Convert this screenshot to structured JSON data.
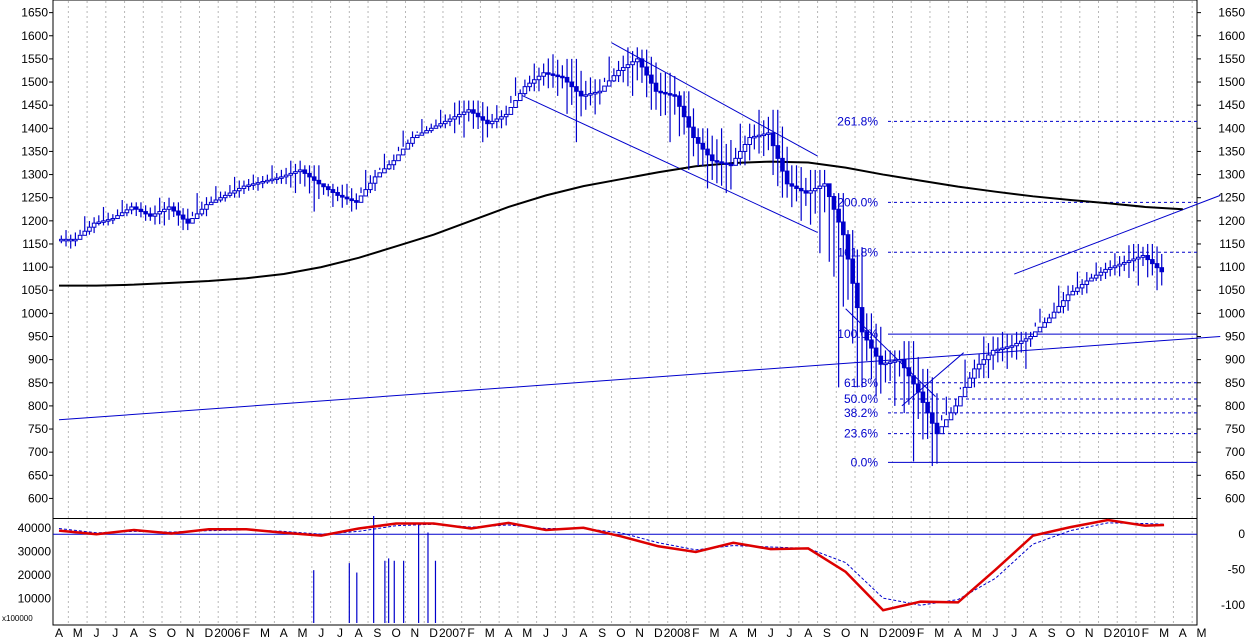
{
  "chart_data": [
    {
      "type": "ohlc",
      "title": "",
      "ylim": [
        575,
        1660
      ],
      "yticks": [
        600,
        650,
        700,
        750,
        800,
        850,
        900,
        950,
        1000,
        1050,
        1100,
        1150,
        1200,
        1250,
        1300,
        1350,
        1400,
        1450,
        1500,
        1550,
        1600,
        1650
      ],
      "x_labels": [
        "A",
        "M",
        "J",
        "J",
        "A",
        "S",
        "O",
        "N",
        "D",
        "2006",
        "F",
        "M",
        "A",
        "M",
        "J",
        "J",
        "A",
        "S",
        "O",
        "N",
        "D",
        "2007",
        "F",
        "M",
        "A",
        "M",
        "J",
        "J",
        "A",
        "S",
        "O",
        "N",
        "D",
        "2008",
        "F",
        "M",
        "A",
        "M",
        "J",
        "J",
        "A",
        "S",
        "O",
        "N",
        "D",
        "2009",
        "F",
        "M",
        "A",
        "M",
        "J",
        "J",
        "A",
        "S",
        "O",
        "N",
        "D",
        "2010",
        "F",
        "M",
        "A",
        "M"
      ],
      "x_range_months": [
        0,
        62
      ],
      "price_series": {
        "name": "",
        "color": "#0000cc",
        "months": [
          0,
          1,
          2,
          3,
          4,
          5,
          6,
          7,
          8,
          9,
          10,
          11,
          12,
          13,
          14,
          15,
          16,
          17,
          18,
          19,
          20,
          21,
          22,
          23,
          24,
          25,
          26,
          27,
          28,
          29,
          30,
          31,
          32,
          33,
          34,
          35,
          36,
          37,
          38,
          39,
          40,
          41,
          42,
          43,
          44,
          45,
          46,
          47,
          48,
          49,
          50,
          51,
          52,
          53,
          54,
          55,
          56,
          57,
          58
        ],
        "close": [
          1160,
          1195,
          1205,
          1230,
          1210,
          1230,
          1195,
          1235,
          1255,
          1275,
          1285,
          1295,
          1310,
          1280,
          1255,
          1240,
          1295,
          1330,
          1380,
          1400,
          1420,
          1440,
          1410,
          1430,
          1490,
          1520,
          1510,
          1470,
          1480,
          1525,
          1550,
          1480,
          1470,
          1380,
          1330,
          1320,
          1380,
          1390,
          1280,
          1260,
          1280,
          1170,
          960,
          890,
          900,
          830,
          740,
          800,
          880,
          920,
          930,
          950,
          990,
          1040,
          1070,
          1095,
          1110,
          1125,
          1090
        ],
        "high": [
          1180,
          1210,
          1230,
          1245,
          1240,
          1250,
          1240,
          1260,
          1275,
          1295,
          1300,
          1320,
          1330,
          1320,
          1280,
          1280,
          1310,
          1345,
          1395,
          1420,
          1440,
          1460,
          1460,
          1450,
          1510,
          1540,
          1560,
          1550,
          1510,
          1555,
          1575,
          1570,
          1520,
          1480,
          1400,
          1400,
          1410,
          1440,
          1440,
          1320,
          1310,
          1260,
          1180,
          1000,
          920,
          940,
          880,
          820,
          900,
          950,
          960,
          960,
          1010,
          1060,
          1090,
          1110,
          1130,
          1150,
          1150
        ],
        "low": [
          1140,
          1170,
          1190,
          1210,
          1200,
          1190,
          1180,
          1210,
          1240,
          1250,
          1265,
          1280,
          1260,
          1220,
          1230,
          1220,
          1260,
          1310,
          1360,
          1390,
          1400,
          1380,
          1370,
          1400,
          1470,
          1480,
          1470,
          1370,
          1430,
          1500,
          1470,
          1440,
          1370,
          1310,
          1270,
          1260,
          1320,
          1340,
          1250,
          1200,
          1130,
          840,
          840,
          820,
          800,
          680,
          670,
          780,
          840,
          860,
          880,
          880,
          980,
          1000,
          1040,
          1070,
          1080,
          1060,
          1050
        ]
      },
      "moving_average": {
        "color": "#000000",
        "months": [
          0,
          2,
          4,
          6,
          8,
          10,
          12,
          14,
          16,
          18,
          20,
          22,
          24,
          26,
          28,
          30,
          32,
          34,
          36,
          38,
          40,
          42,
          44,
          46,
          48,
          50,
          52,
          54,
          56,
          58,
          60
        ],
        "values": [
          1060,
          1060,
          1062,
          1066,
          1070,
          1076,
          1085,
          1100,
          1120,
          1145,
          1170,
          1200,
          1230,
          1255,
          1275,
          1290,
          1305,
          1318,
          1325,
          1328,
          1326,
          1315,
          1300,
          1287,
          1274,
          1263,
          1253,
          1245,
          1238,
          1230,
          1225
        ]
      },
      "trend_lines": [
        {
          "color": "#0000cc",
          "points": [
            [
              0,
              770
            ],
            [
              62,
              950
            ]
          ]
        },
        {
          "color": "#0000cc",
          "points": [
            [
              29.5,
              1585
            ],
            [
              40.5,
              1340
            ]
          ]
        },
        {
          "color": "#0000cc",
          "points": [
            [
              24.5,
              1475
            ],
            [
              40.5,
              1175
            ]
          ]
        },
        {
          "color": "#0000cc",
          "points": [
            [
              51,
              1085
            ],
            [
              62,
              1255
            ]
          ]
        },
        {
          "color": "#0000cc",
          "points": [
            [
              42,
              1010
            ],
            [
              46.8,
              820
            ]
          ]
        },
        {
          "color": "#0000cc",
          "points": [
            [
              45,
              800
            ],
            [
              48.3,
              915
            ]
          ]
        }
      ],
      "fibonacci_levels": [
        {
          "label": "0.0%",
          "value": 678,
          "style": "solid"
        },
        {
          "label": "23.6%",
          "value": 740,
          "style": "dashed"
        },
        {
          "label": "38.2%",
          "value": 785,
          "style": "dashed"
        },
        {
          "label": "50.0%",
          "value": 815,
          "style": "dashed"
        },
        {
          "label": "61.8%",
          "value": 850,
          "style": "dashed"
        },
        {
          "label": "100.0%",
          "value": 955,
          "style": "solid"
        },
        {
          "label": "161.8%",
          "value": 1132,
          "style": "dashed"
        },
        {
          "label": "200.0%",
          "value": 1240,
          "style": "dashed"
        },
        {
          "label": "261.8%",
          "value": 1415,
          "style": "dashed"
        }
      ]
    },
    {
      "type": "line",
      "axis_unit_label": "x100000",
      "left_ticks": [
        "10000",
        "20000",
        "30000",
        "40000"
      ],
      "left_tick_values": [
        10000,
        20000,
        30000,
        40000
      ],
      "right_ticks": [
        "0",
        "-50",
        "-100"
      ],
      "right_tick_values": [
        0,
        -50,
        -100
      ],
      "ylim_right": [
        -125,
        20
      ],
      "oscillator": {
        "color": "#dd0000",
        "months": [
          0,
          2,
          4,
          6,
          8,
          10,
          12,
          14,
          16,
          18,
          20,
          22,
          24,
          26,
          28,
          30,
          32,
          34,
          36,
          38,
          40,
          42,
          44,
          46,
          48,
          50,
          52,
          54,
          56,
          58,
          59
        ],
        "values": [
          5,
          0,
          6,
          1,
          7,
          7,
          2,
          -2,
          8,
          15,
          15,
          8,
          16,
          6,
          9,
          -3,
          -17,
          -25,
          -12,
          -21,
          -20,
          -53,
          -107,
          -95,
          -96,
          -50,
          -2,
          10,
          20,
          12,
          13
        ]
      },
      "signal": {
        "color": "#0000cc",
        "months": [
          0,
          2,
          4,
          6,
          8,
          10,
          12,
          14,
          16,
          18,
          20,
          22,
          24,
          26,
          28,
          30,
          32,
          34,
          36,
          38,
          40,
          42,
          44,
          46,
          48,
          50,
          52,
          54,
          56,
          58,
          59
        ],
        "values": [
          8,
          2,
          4,
          3,
          5,
          6,
          4,
          0,
          4,
          12,
          14,
          10,
          13,
          8,
          8,
          2,
          -12,
          -22,
          -16,
          -18,
          -20,
          -40,
          -90,
          -100,
          -92,
          -62,
          -14,
          5,
          16,
          15,
          14
        ]
      },
      "volume_bars": {
        "color": "#0000cc",
        "months": [
          13.6,
          15.5,
          15.9,
          16.8,
          17.4,
          17.6,
          17.9,
          18.4,
          19.2,
          19.7,
          20.1
        ],
        "values": [
          22000,
          25000,
          21000,
          45000,
          26000,
          27000,
          26000,
          26000,
          42000,
          38000,
          26000
        ]
      }
    }
  ]
}
